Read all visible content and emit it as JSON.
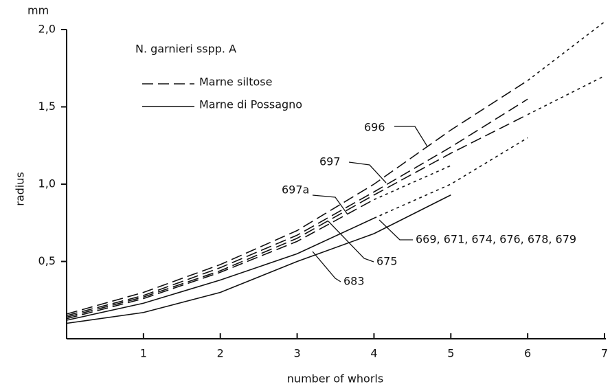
{
  "chart_data": {
    "type": "line",
    "unit_label": "mm",
    "annotation": "N. garnieri sspp. A",
    "xlabel": "number of whorls",
    "ylabel": "radius",
    "x": [
      0,
      1,
      2,
      3,
      4,
      5,
      6,
      7
    ],
    "xlim": [
      0,
      7
    ],
    "xticks": [
      1,
      2,
      3,
      4,
      5,
      6,
      7
    ],
    "ylim": [
      0,
      2.0
    ],
    "yticks": [
      {
        "value": 0.5,
        "label": "0,5"
      },
      {
        "value": 1.0,
        "label": "1,0"
      },
      {
        "value": 1.5,
        "label": "1,5"
      },
      {
        "value": 2.0,
        "label": "2,0"
      }
    ],
    "color": "#111111",
    "legend": [
      {
        "name": "Marne siltose",
        "style": "dashed"
      },
      {
        "name": "Marne di Possagno",
        "style": "solid"
      }
    ],
    "series": [
      {
        "name": "696",
        "style": "dashed",
        "extrapolated_from": 6,
        "values": [
          0.16,
          0.3,
          0.48,
          0.7,
          1.0,
          1.35,
          1.67,
          2.05
        ]
      },
      {
        "name": "697",
        "style": "dashed",
        "values": [
          0.15,
          0.28,
          0.46,
          0.67,
          0.95,
          1.24,
          1.55,
          null
        ]
      },
      {
        "name": "697a",
        "style": "dashed",
        "extrapolated_from": 6,
        "values": [
          0.14,
          0.27,
          0.44,
          0.65,
          0.93,
          1.2,
          1.45,
          1.7
        ]
      },
      {
        "name": "675",
        "style": "dashed",
        "extrapolated_from": 4,
        "values": [
          0.13,
          0.26,
          0.43,
          0.63,
          0.9,
          1.12,
          null,
          null
        ]
      },
      {
        "name": "669, 671, 674, 676, 678, 679",
        "style": "solid",
        "extrapolated_from": 4,
        "values": [
          0.12,
          0.23,
          0.38,
          0.55,
          0.78,
          1.0,
          1.3,
          null
        ]
      },
      {
        "name": "683",
        "style": "solid",
        "values": [
          0.1,
          0.17,
          0.3,
          0.5,
          0.68,
          0.93,
          null,
          null
        ]
      }
    ]
  }
}
